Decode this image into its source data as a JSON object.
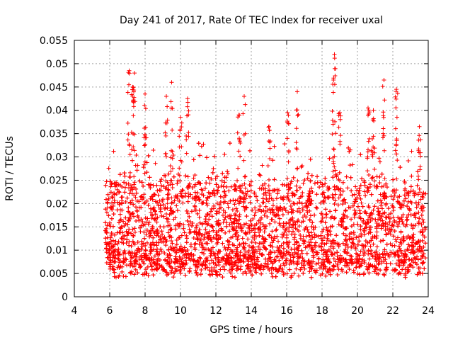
{
  "chart_data": {
    "type": "scatter",
    "title": "Day 241 of 2017, Rate Of TEC Index for receiver uxal",
    "xlabel": "GPS time / hours",
    "ylabel": "ROTI / TECUs",
    "xlim": [
      4,
      24
    ],
    "ylim": [
      0,
      0.055
    ],
    "xticks": [
      4,
      6,
      8,
      10,
      12,
      14,
      16,
      18,
      20,
      22,
      24
    ],
    "xtick_labels": [
      "4",
      "6",
      "8",
      "10",
      "12",
      "14",
      "16",
      "18",
      "20",
      "22",
      "24"
    ],
    "yticks": [
      0,
      0.005,
      0.01,
      0.015,
      0.02,
      0.025,
      0.03,
      0.035,
      0.04,
      0.045,
      0.05,
      0.055
    ],
    "ytick_labels": [
      "0",
      "0.005",
      "0.01",
      "0.015",
      "0.02",
      "0.025",
      "0.03",
      "0.035",
      "0.04",
      "0.045",
      "0.05",
      "0.055"
    ],
    "grid": true,
    "marker": "plus",
    "color": "#ff0000",
    "series": [
      {
        "name": "ROTI",
        "x_range": [
          5.75,
          23.85
        ],
        "typical_range": [
          0.006,
          0.025
        ],
        "min": 0.0025,
        "max": 0.052,
        "peaks": [
          {
            "x": 7.1,
            "y": 0.0485
          },
          {
            "x": 7.4,
            "y": 0.048
          },
          {
            "x": 7.3,
            "y": 0.045
          },
          {
            "x": 8.0,
            "y": 0.0435
          },
          {
            "x": 9.5,
            "y": 0.046
          },
          {
            "x": 9.2,
            "y": 0.043
          },
          {
            "x": 10.4,
            "y": 0.0425
          },
          {
            "x": 10.0,
            "y": 0.0385
          },
          {
            "x": 13.6,
            "y": 0.043
          },
          {
            "x": 13.3,
            "y": 0.039
          },
          {
            "x": 15.0,
            "y": 0.0365
          },
          {
            "x": 16.05,
            "y": 0.0395
          },
          {
            "x": 16.6,
            "y": 0.044
          },
          {
            "x": 18.7,
            "y": 0.052
          },
          {
            "x": 18.65,
            "y": 0.0465
          },
          {
            "x": 19.0,
            "y": 0.0395
          },
          {
            "x": 20.6,
            "y": 0.0405
          },
          {
            "x": 20.9,
            "y": 0.04
          },
          {
            "x": 21.5,
            "y": 0.0465
          },
          {
            "x": 22.2,
            "y": 0.0445
          },
          {
            "x": 23.5,
            "y": 0.0365
          }
        ]
      }
    ]
  }
}
